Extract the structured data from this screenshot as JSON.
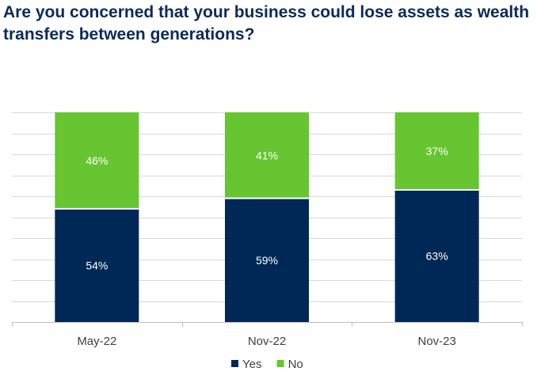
{
  "chart_data": {
    "type": "bar",
    "stacked": true,
    "title": "Are you concerned that your business could lose assets as wealth transfers between generations?",
    "categories": [
      "May-22",
      "Nov-22",
      "Nov-23"
    ],
    "series": [
      {
        "name": "Yes",
        "color": "#002856",
        "values": [
          54,
          59,
          63
        ],
        "labels": [
          "54%",
          "59%",
          "63%"
        ]
      },
      {
        "name": "No",
        "color": "#66c530",
        "values": [
          46,
          41,
          37
        ],
        "labels": [
          "46%",
          "41%",
          "37%"
        ]
      }
    ],
    "ylim": [
      0,
      100
    ],
    "xlabel": "",
    "ylabel": "",
    "grid": true,
    "legend": "bottom-center",
    "gridline_color": "#d9d9d9",
    "axis_color": "#bfbfbf",
    "label_color": "#ffffff",
    "tick_color": "#404040"
  }
}
